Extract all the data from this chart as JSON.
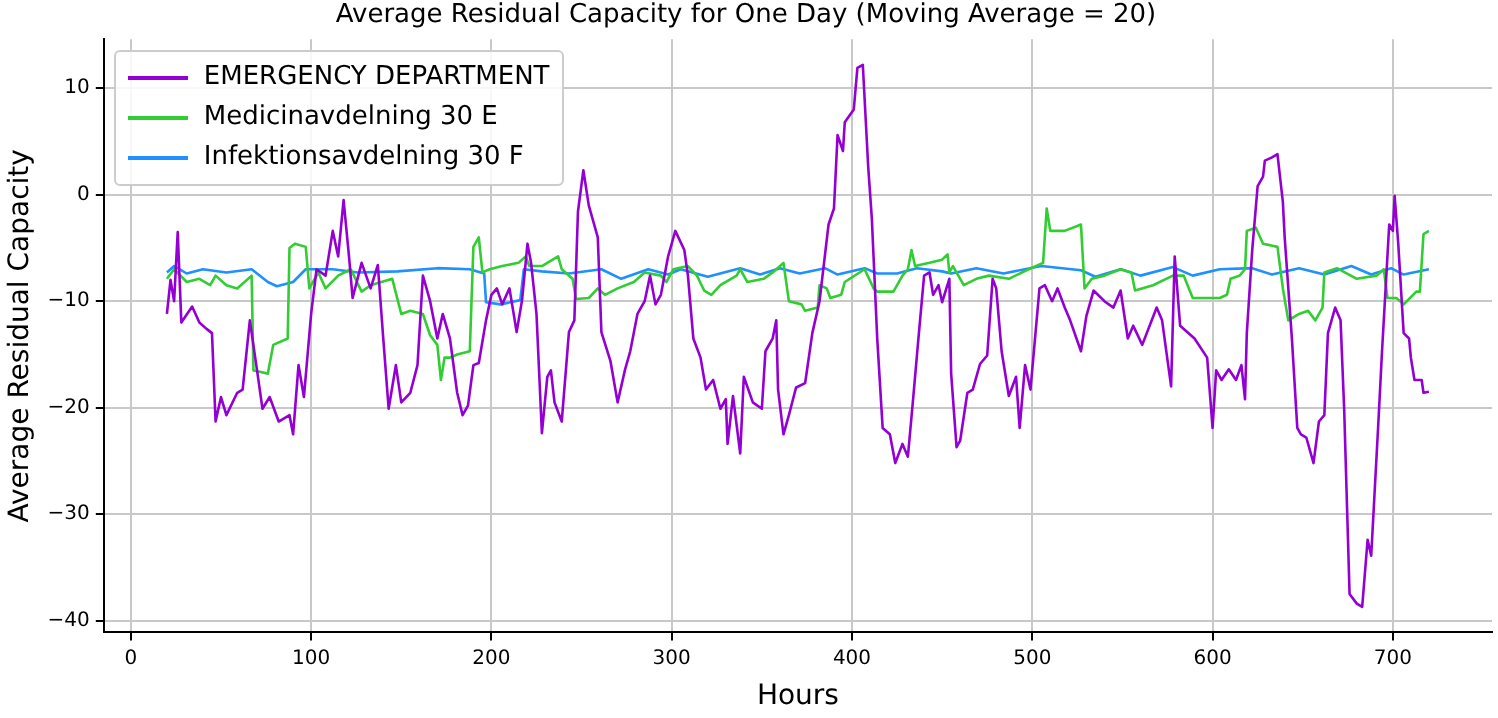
{
  "chart_data": {
    "type": "line",
    "title": "Average Residual Capacity for One Day (Moving Average = 20)",
    "xlabel": "Hours",
    "ylabel": "Average Residual Capacity",
    "xlim": [
      -15,
      755
    ],
    "xticks": [
      0,
      100,
      200,
      300,
      400,
      500,
      600,
      700
    ],
    "ylim": [
      -41.1,
      14.6
    ],
    "yticks": [
      -40,
      -30,
      -20,
      -10,
      0,
      10
    ],
    "grid": true,
    "legend": "top left",
    "series": [
      {
        "name": "EMERGENCY DEPARTMENT",
        "color": "#9400d3",
        "x": [
          20,
          22,
          24,
          26,
          28,
          34,
          38,
          42,
          45,
          47,
          50,
          53,
          59,
          62,
          66,
          70,
          73,
          77,
          82,
          88,
          90,
          93,
          96,
          100,
          103,
          108,
          112,
          115,
          118,
          121,
          123,
          128,
          133,
          137,
          140,
          143,
          147,
          150,
          155,
          159,
          162,
          166,
          170,
          173,
          177,
          181,
          184,
          187,
          190,
          193,
          197,
          200,
          203,
          206,
          210,
          214,
          217,
          220,
          222,
          225,
          228,
          231,
          233,
          235,
          239,
          243,
          246,
          248,
          251,
          254,
          259,
          261,
          266,
          270,
          274,
          277,
          281,
          285,
          288,
          291,
          294,
          298,
          302,
          307,
          309,
          312,
          316,
          319,
          323,
          327,
          330,
          331,
          334,
          338,
          340,
          345,
          350,
          352,
          356,
          358,
          359,
          362,
          365,
          369,
          374,
          378,
          382,
          387,
          390,
          392,
          395,
          396,
          401,
          403,
          406,
          409,
          411,
          414,
          417,
          421,
          424,
          428,
          431,
          434,
          437,
          440,
          443,
          445,
          448,
          450,
          454,
          455,
          458,
          460,
          464,
          467,
          471,
          475,
          478,
          480,
          483,
          487,
          491,
          493,
          496,
          499,
          504,
          507,
          511,
          514,
          518,
          521,
          527,
          530,
          534,
          540,
          545,
          549,
          553,
          556,
          561,
          569,
          572,
          577,
          579,
          582,
          590,
          597,
          600,
          602,
          605,
          609,
          613,
          616,
          618,
          619,
          622,
          625,
          628,
          629,
          633,
          636,
          639,
          640,
          644,
          647,
          649,
          652,
          656,
          659,
          662,
          664,
          668,
          671,
          673,
          676,
          680,
          683,
          686,
          688,
          692,
          694,
          698,
          700,
          701,
          703,
          706,
          709,
          710,
          712,
          716,
          717,
          720
        ],
        "values": [
          -11.2,
          -8,
          -10,
          -3.5,
          -12,
          -10.5,
          -12,
          -12.6,
          -13,
          -21.3,
          -19,
          -20.7,
          -18.6,
          -18.3,
          -11.8,
          -16.5,
          -20.1,
          -19,
          -21.3,
          -20.7,
          -22.5,
          -16,
          -19,
          -11.2,
          -7,
          -7.6,
          -3.4,
          -5.8,
          -0.5,
          -5.8,
          -9.7,
          -6.4,
          -8.8,
          -6.6,
          -13.5,
          -20.1,
          -16,
          -19.5,
          -18.6,
          -16,
          -7.6,
          -10,
          -13.5,
          -11.2,
          -13.5,
          -18.6,
          -20.7,
          -19.8,
          -16,
          -15.8,
          -11.8,
          -9.4,
          -8.8,
          -10.3,
          -8.8,
          -12.9,
          -9.9,
          -4.6,
          -6.4,
          -11.2,
          -22.4,
          -17.1,
          -16.5,
          -19.5,
          -21.3,
          -12.9,
          -11.8,
          -1.6,
          2.3,
          -1,
          -4,
          -12.9,
          -15.6,
          -19.5,
          -16.5,
          -14.7,
          -11.2,
          -10,
          -7.6,
          -10.3,
          -9.4,
          -5.8,
          -3.4,
          -5.2,
          -7.6,
          -13.5,
          -15.3,
          -18.3,
          -17.4,
          -20.1,
          -19.2,
          -23.4,
          -18.9,
          -24.3,
          -17.1,
          -19.5,
          -20.1,
          -14.7,
          -13.5,
          -11.8,
          -18.3,
          -22.5,
          -20.7,
          -18.1,
          -17.7,
          -13,
          -10,
          -2.8,
          -1.3,
          5.6,
          4.1,
          6.8,
          8,
          11.9,
          12.2,
          2.6,
          -2.2,
          -13.5,
          -21.9,
          -22.5,
          -25.2,
          -23.4,
          -24.6,
          -19,
          -13.2,
          -7.6,
          -7.3,
          -9.4,
          -8.5,
          -10.1,
          -7.9,
          -16.8,
          -23.7,
          -23.1,
          -18.6,
          -18.3,
          -15.9,
          -15.1,
          -7.9,
          -8.8,
          -14.7,
          -18.9,
          -17.1,
          -21.9,
          -16,
          -18.3,
          -8.8,
          -8.5,
          -10,
          -8.8,
          -10.6,
          -11.8,
          -14.7,
          -11.4,
          -9,
          -10,
          -10.6,
          -9,
          -13.5,
          -12.3,
          -14.1,
          -10.6,
          -11.8,
          -18,
          -5.8,
          -12.3,
          -13.5,
          -15.3,
          -21.9,
          -16.5,
          -17.4,
          -16.4,
          -17.4,
          -16,
          -19.2,
          -13,
          -5.2,
          0.8,
          1.7,
          3.2,
          3.5,
          3.8,
          -0.7,
          -4,
          -13.5,
          -21.9,
          -22.5,
          -22.8,
          -25.2,
          -21.3,
          -20.7,
          -13,
          -10.6,
          -11.8,
          -20.1,
          -37.5,
          -38.4,
          -38.7,
          -32.4,
          -33.9,
          -21.3,
          -14.7,
          -2.8,
          -3.4,
          -0.1,
          -4.6,
          -13,
          -13.5,
          -15.3,
          -17.4,
          -17.4,
          -18.6,
          -18.5
        ]
      },
      {
        "name": "Medicinavdelning 30 E",
        "color": "#32cd32",
        "x": [
          20,
          24,
          31,
          38,
          44,
          47,
          53,
          59,
          67,
          68,
          76,
          79,
          87,
          88,
          91,
          97,
          99,
          104,
          108,
          115,
          122,
          128,
          133,
          139,
          145,
          150,
          155,
          162,
          166,
          170,
          172,
          174,
          177,
          181,
          188,
          190,
          193,
          195,
          199,
          206,
          215,
          219,
          221,
          228,
          237,
          239,
          245,
          247,
          254,
          259,
          263,
          270,
          279,
          285,
          294,
          297,
          301,
          309,
          314,
          318,
          322,
          327,
          336,
          338,
          342,
          351,
          356,
          362,
          365,
          372,
          374,
          381,
          382,
          386,
          388,
          394,
          396,
          407,
          412,
          414,
          423,
          428,
          431,
          433,
          435,
          443,
          450,
          453,
          454,
          456,
          462,
          469,
          476,
          487,
          498,
          506,
          508,
          510,
          518,
          527,
          529,
          533,
          540,
          549,
          555,
          557,
          567,
          578,
          584,
          589,
          597,
          604,
          608,
          610,
          615,
          618,
          619,
          624,
          628,
          636,
          639,
          642,
          648,
          653,
          657,
          661,
          662,
          669,
          680,
          691,
          695,
          697,
          702,
          706,
          713,
          715,
          717,
          720
        ],
        "values": [
          -7.9,
          -7,
          -8.2,
          -7.9,
          -8.5,
          -7.6,
          -8.5,
          -8.8,
          -7.6,
          -16.5,
          -16.8,
          -14.1,
          -13.5,
          -5,
          -4.6,
          -4.9,
          -8.8,
          -7.3,
          -8.8,
          -7.6,
          -7,
          -9.1,
          -8.5,
          -8.2,
          -7.9,
          -11.2,
          -10.9,
          -11.2,
          -13.2,
          -14.1,
          -17.4,
          -15.3,
          -15.3,
          -15,
          -14.7,
          -4.9,
          -4,
          -7.3,
          -7,
          -6.7,
          -6.4,
          -5.8,
          -6.7,
          -6.7,
          -5.8,
          -7,
          -7.9,
          -9.8,
          -9.7,
          -8.8,
          -9.4,
          -8.8,
          -8.2,
          -7.3,
          -7.6,
          -8.2,
          -7,
          -6.7,
          -7.6,
          -9,
          -9.4,
          -8.5,
          -7.6,
          -7,
          -8.2,
          -7.9,
          -7.3,
          -6.4,
          -10,
          -10.3,
          -10.9,
          -10.6,
          -8.5,
          -8.8,
          -9.7,
          -9.4,
          -8.2,
          -7,
          -8.8,
          -9.1,
          -9.1,
          -7.6,
          -7,
          -5.2,
          -6.7,
          -6.4,
          -6.1,
          -5.6,
          -7.3,
          -6.7,
          -8.5,
          -7.9,
          -7.6,
          -7.9,
          -7,
          -6.4,
          -1.3,
          -3.4,
          -3.4,
          -2.8,
          -8.8,
          -7.9,
          -7.6,
          -7,
          -7.3,
          -9,
          -8.5,
          -7.6,
          -7.6,
          -9.7,
          -9.7,
          -9.7,
          -9.4,
          -7.9,
          -7.6,
          -7,
          -3.4,
          -3.1,
          -4.6,
          -4.9,
          -8.8,
          -11.8,
          -11.2,
          -10.9,
          -11.8,
          -10.6,
          -7.3,
          -6.9,
          -7.9,
          -7.6,
          -7,
          -9.7,
          -9.7,
          -10.3,
          -9.1,
          -9.1,
          -3.7,
          -3.4
        ]
      },
      {
        "name": "Infektionsavdelning 30 F",
        "color": "#1e90ff",
        "x": [
          20,
          24,
          31,
          40,
          53,
          67,
          76,
          81,
          90,
          97,
          112,
          126,
          148,
          170,
          188,
          196,
          197,
          205,
          216,
          218,
          228,
          243,
          261,
          272,
          287,
          298,
          305,
          320,
          338,
          349,
          360,
          371,
          385,
          392,
          407,
          414,
          425,
          436,
          450,
          455,
          469,
          484,
          505,
          527,
          535,
          549,
          560,
          578,
          589,
          604,
          622,
          633,
          648,
          662,
          677,
          688,
          699,
          706,
          720
        ],
        "values": [
          -7.3,
          -6.7,
          -7.4,
          -7,
          -7.3,
          -7,
          -8.2,
          -8.6,
          -8.2,
          -7,
          -7,
          -7.3,
          -7.2,
          -6.9,
          -7,
          -7.4,
          -10.1,
          -10.3,
          -9.9,
          -7,
          -7.2,
          -7.4,
          -7,
          -7.9,
          -7,
          -7.5,
          -7,
          -7.7,
          -6.9,
          -7.5,
          -6.9,
          -7.4,
          -6.9,
          -7.5,
          -6.9,
          -7.4,
          -7.4,
          -6.9,
          -7.2,
          -7.4,
          -6.9,
          -7.4,
          -6.7,
          -7.1,
          -7.7,
          -7,
          -7.6,
          -6.8,
          -7.6,
          -7,
          -6.9,
          -7.5,
          -6.9,
          -7.5,
          -6.7,
          -7.5,
          -6.9,
          -7.5,
          -7
        ]
      }
    ]
  }
}
